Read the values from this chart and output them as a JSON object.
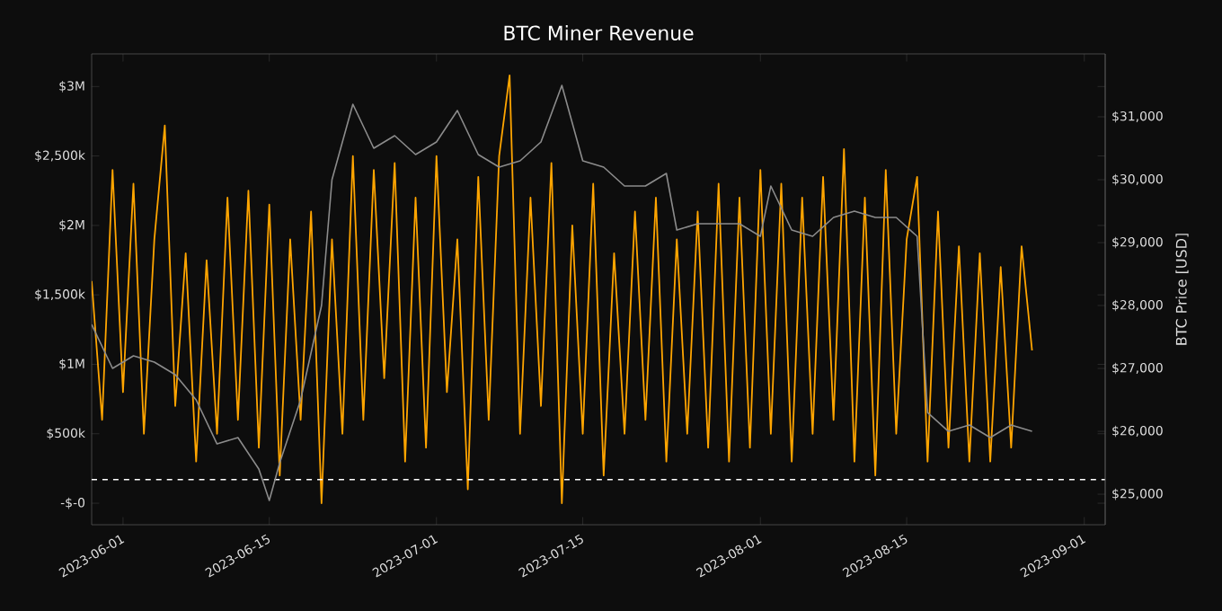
{
  "chart_data": {
    "type": "line",
    "title": "BTC Miner Revenue",
    "y2label": "BTC Price [USD]",
    "xlim": [
      "2023-05-29",
      "2023-09-03"
    ],
    "xticks": [
      "2023-06-01",
      "2023-06-15",
      "2023-07-01",
      "2023-07-15",
      "2023-08-01",
      "2023-08-15",
      "2023-09-01"
    ],
    "ylim": [
      -155000,
      3235000
    ],
    "yticks": [
      {
        "value": 0,
        "label": "-$-0"
      },
      {
        "value": 500000,
        "label": "$500k"
      },
      {
        "value": 1000000,
        "label": "$1M"
      },
      {
        "value": 1500000,
        "label": "$1,500k"
      },
      {
        "value": 2000000,
        "label": "$2M"
      },
      {
        "value": 2500000,
        "label": "$2,500k"
      },
      {
        "value": 3000000,
        "label": "$3M"
      }
    ],
    "y2lim": [
      24515,
      32000
    ],
    "y2ticks": [
      {
        "value": 25000,
        "label": "$25,000"
      },
      {
        "value": 26000,
        "label": "$26,000"
      },
      {
        "value": 27000,
        "label": "$27,000"
      },
      {
        "value": 28000,
        "label": "$28,000"
      },
      {
        "value": 29000,
        "label": "$29,000"
      },
      {
        "value": 30000,
        "label": "$30,000"
      },
      {
        "value": 31000,
        "label": "$31,000"
      }
    ],
    "grid": false,
    "marker": "none",
    "ref_lines": [
      {
        "axis": "y",
        "value": 170000,
        "color": "#ffffff",
        "line_style": "dashed"
      }
    ],
    "series": [
      {
        "type": "line",
        "color": "#ffa500",
        "x": [
          "2023-05-29",
          "2023-05-30",
          "2023-05-31",
          "2023-06-01",
          "2023-06-02",
          "2023-06-03",
          "2023-06-04",
          "2023-06-05",
          "2023-06-06",
          "2023-06-07",
          "2023-06-08",
          "2023-06-09",
          "2023-06-10",
          "2023-06-11",
          "2023-06-12",
          "2023-06-13",
          "2023-06-14",
          "2023-06-15",
          "2023-06-16",
          "2023-06-17",
          "2023-06-18",
          "2023-06-19",
          "2023-06-20",
          "2023-06-21",
          "2023-06-22",
          "2023-06-23",
          "2023-06-24",
          "2023-06-25",
          "2023-06-26",
          "2023-06-27",
          "2023-06-28",
          "2023-06-29",
          "2023-06-30",
          "2023-07-01",
          "2023-07-02",
          "2023-07-03",
          "2023-07-04",
          "2023-07-05",
          "2023-07-06",
          "2023-07-07",
          "2023-07-08",
          "2023-07-09",
          "2023-07-10",
          "2023-07-11",
          "2023-07-12",
          "2023-07-13",
          "2023-07-14",
          "2023-07-15",
          "2023-07-16",
          "2023-07-17",
          "2023-07-18",
          "2023-07-19",
          "2023-07-20",
          "2023-07-21",
          "2023-07-22",
          "2023-07-23",
          "2023-07-24",
          "2023-07-25",
          "2023-07-26",
          "2023-07-27",
          "2023-07-28",
          "2023-07-29",
          "2023-07-30",
          "2023-07-31",
          "2023-08-01",
          "2023-08-02",
          "2023-08-03",
          "2023-08-04",
          "2023-08-05",
          "2023-08-06",
          "2023-08-07",
          "2023-08-08",
          "2023-08-09",
          "2023-08-10",
          "2023-08-11",
          "2023-08-12",
          "2023-08-13",
          "2023-08-14",
          "2023-08-15",
          "2023-08-16",
          "2023-08-17",
          "2023-08-18",
          "2023-08-19",
          "2023-08-20",
          "2023-08-21",
          "2023-08-22",
          "2023-08-23",
          "2023-08-24",
          "2023-08-25",
          "2023-08-26",
          "2023-08-27"
        ],
        "values": [
          1600000,
          600000,
          2400000,
          800000,
          2300000,
          500000,
          1900000,
          2720000,
          700000,
          1800000,
          300000,
          1750000,
          500000,
          2200000,
          600000,
          2250000,
          400000,
          2150000,
          200000,
          1900000,
          600000,
          2100000,
          0,
          1900000,
          500000,
          2500000,
          600000,
          2400000,
          900000,
          2450000,
          300000,
          2200000,
          400000,
          2500000,
          800000,
          1900000,
          100000,
          2350000,
          600000,
          2500000,
          3080000,
          500000,
          2200000,
          700000,
          2450000,
          0,
          2000000,
          500000,
          2300000,
          200000,
          1800000,
          500000,
          2100000,
          600000,
          2200000,
          300000,
          1900000,
          500000,
          2100000,
          400000,
          2300000,
          300000,
          2200000,
          400000,
          2400000,
          500000,
          2300000,
          300000,
          2200000,
          500000,
          2350000,
          600000,
          2550000,
          300000,
          2200000,
          200000,
          2400000,
          500000,
          1900000,
          2350000,
          300000,
          2100000,
          400000,
          1850000,
          300000,
          1800000,
          300000,
          1700000,
          400000,
          1850000,
          1100000
        ]
      },
      {
        "type": "line",
        "color": "#8c8c8c",
        "axis": "y2",
        "x": [
          "2023-05-29",
          "2023-05-31",
          "2023-06-02",
          "2023-06-04",
          "2023-06-06",
          "2023-06-08",
          "2023-06-10",
          "2023-06-12",
          "2023-06-14",
          "2023-06-15",
          "2023-06-16",
          "2023-06-18",
          "2023-06-20",
          "2023-06-21",
          "2023-06-23",
          "2023-06-25",
          "2023-06-27",
          "2023-06-29",
          "2023-07-01",
          "2023-07-03",
          "2023-07-05",
          "2023-07-07",
          "2023-07-09",
          "2023-07-11",
          "2023-07-13",
          "2023-07-15",
          "2023-07-17",
          "2023-07-19",
          "2023-07-21",
          "2023-07-23",
          "2023-07-24",
          "2023-07-26",
          "2023-07-28",
          "2023-07-30",
          "2023-08-01",
          "2023-08-02",
          "2023-08-04",
          "2023-08-06",
          "2023-08-08",
          "2023-08-10",
          "2023-08-12",
          "2023-08-14",
          "2023-08-16",
          "2023-08-17",
          "2023-08-19",
          "2023-08-21",
          "2023-08-23",
          "2023-08-25",
          "2023-08-27"
        ],
        "values": [
          27700,
          27000,
          27200,
          27100,
          26900,
          26500,
          25800,
          25900,
          25400,
          24900,
          25500,
          26500,
          28000,
          30000,
          31200,
          30500,
          30700,
          30400,
          30600,
          31100,
          30400,
          30200,
          30300,
          30600,
          31500,
          30300,
          30200,
          29900,
          29900,
          30100,
          29200,
          29300,
          29300,
          29300,
          29100,
          29900,
          29200,
          29100,
          29400,
          29500,
          29400,
          29400,
          29100,
          26300,
          26000,
          26100,
          25900,
          26100,
          26000
        ]
      }
    ]
  }
}
